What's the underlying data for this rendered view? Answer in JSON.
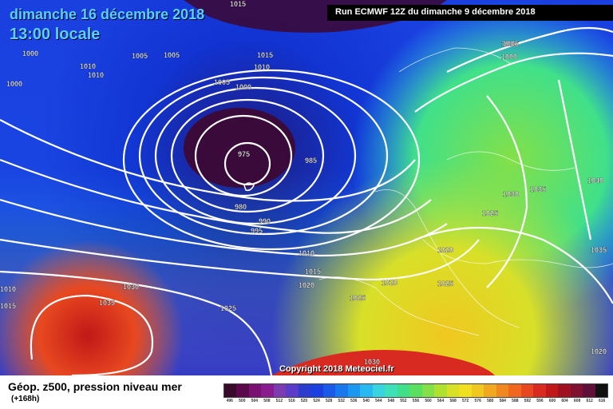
{
  "header": {
    "date": "dimanche 16 décembre 2018",
    "time": "13:00 locale",
    "run": "Run ECMWF 12Z du dimanche 9 décembre 2018"
  },
  "copyright": "Copyright 2018 Meteociel.fr",
  "legend": {
    "title": "Géop. z500, pression niveau mer",
    "subtitle": "(+168h)",
    "scale_values": [
      "496",
      "500",
      "504",
      "508",
      "512",
      "516",
      "520",
      "524",
      "528",
      "532",
      "536",
      "540",
      "544",
      "548",
      "552",
      "556",
      "560",
      "564",
      "568",
      "572",
      "576",
      "580",
      "584",
      "588",
      "592",
      "596",
      "600",
      "604",
      "608",
      "612",
      "616"
    ],
    "scale_colors": [
      "#3a0a2a",
      "#5a0a4a",
      "#7a1070",
      "#8a1c90",
      "#7a3cb0",
      "#5a3cc8",
      "#2c3ccc",
      "#1a40e0",
      "#1a5ae8",
      "#1a78ee",
      "#1a98f0",
      "#2ab8f0",
      "#3ad4e0",
      "#3ee0b8",
      "#40e08a",
      "#5ae060",
      "#84e048",
      "#b0e030",
      "#d8e028",
      "#f0e020",
      "#f0c820",
      "#f0a820",
      "#f08820",
      "#f06820",
      "#e84820",
      "#d82a20",
      "#c01818",
      "#a01020",
      "#801030",
      "#601038",
      "#101010"
    ]
  },
  "map": {
    "colors": {
      "deep_purple": "#3a0a3a",
      "blue_dark": "#1020b0",
      "blue": "#1a40e0",
      "cyan": "#2ab8f0",
      "green": "#40e08a",
      "yellow": "#d8e028",
      "orange": "#f08820",
      "red": "#d82a20",
      "isobar": "#ffffff"
    },
    "labels": [
      "1015",
      "1000",
      "1000",
      "1005",
      "1005",
      "1010",
      "1010",
      "1000",
      "1015",
      "1010",
      "1005",
      "1000",
      "975",
      "985",
      "980",
      "990",
      "995",
      "1000",
      "1005",
      "1030",
      "1035",
      "1040",
      "1025",
      "1035",
      "1010",
      "1015",
      "1020",
      "1025",
      "1020",
      "1025",
      "1020",
      "1030",
      "1035",
      "1010",
      "1015",
      "1025",
      "1020",
      "1030"
    ]
  }
}
